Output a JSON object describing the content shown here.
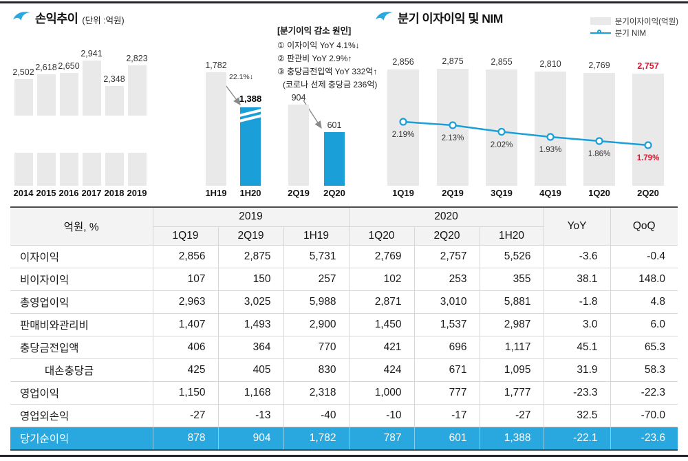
{
  "colors": {
    "blue": "#1B9FD9",
    "gray_bar": "#E9E9E9",
    "red": "#E8112D",
    "row_blue": "#29A7DF",
    "header_bg": "#F3F3F3",
    "rule": "#23232B"
  },
  "left_chart": {
    "title": "손익추이",
    "unit": "(단위 :억원)",
    "decline_label": "22.1%↓",
    "note_title": "[분기이익 감소 원인]",
    "note_lines": [
      "① 이자이익 YoY 4.1%↓",
      "② 판관비 YoY 2.9%↑",
      "③ 충당금전입액 YoY 332억↑",
      "(코로나 선제 충당금 236억)"
    ]
  },
  "right_chart": {
    "title": "분기 이자이익 및 NIM",
    "legend_bar": "분기이자이익(억원)",
    "legend_line": "분기 NIM"
  },
  "chart_data": [
    {
      "name": "profit_trend",
      "type": "bar",
      "title": "손익추이",
      "unit": "억원",
      "axis_break_on_years": true,
      "groups": [
        {
          "categories": [
            "2014",
            "2015",
            "2016",
            "2017",
            "2018",
            "2019"
          ],
          "values": [
            2502,
            2618,
            2650,
            2941,
            2348,
            2823
          ],
          "colors": [
            "gray",
            "gray",
            "gray",
            "gray",
            "gray",
            "gray"
          ]
        },
        {
          "categories": [
            "1H19",
            "1H20"
          ],
          "values": [
            1782,
            1388
          ],
          "colors": [
            "gray",
            "blue"
          ],
          "annotation": "22.1%↓"
        },
        {
          "categories": [
            "2Q19",
            "2Q20"
          ],
          "values": [
            904,
            601
          ],
          "colors": [
            "gray",
            "blue"
          ]
        }
      ]
    },
    {
      "name": "quarterly_interest_income_and_nim",
      "type": "bar+line",
      "title": "분기 이자이익 및 NIM",
      "categories": [
        "1Q19",
        "2Q19",
        "3Q19",
        "4Q19",
        "1Q20",
        "2Q20"
      ],
      "series": [
        {
          "name": "분기이자이익(억원)",
          "type": "bar",
          "values": [
            2856,
            2875,
            2855,
            2810,
            2769,
            2757
          ]
        },
        {
          "name": "분기 NIM",
          "type": "line",
          "unit": "%",
          "values": [
            2.19,
            2.13,
            2.02,
            1.93,
            1.86,
            1.79
          ]
        }
      ],
      "last_point_highlighted_red": true,
      "legend_position": "top-right"
    }
  ],
  "table": {
    "corner_label": "억원, %",
    "col_groups": [
      {
        "label": "2019",
        "cols": [
          "1Q19",
          "2Q19",
          "1H19"
        ]
      },
      {
        "label": "2020",
        "cols": [
          "1Q20",
          "2Q20",
          "1H20"
        ]
      }
    ],
    "extra_cols": [
      "YoY",
      "QoQ"
    ],
    "rows": [
      {
        "label": "이자이익",
        "indent": false,
        "highlight": false,
        "values": [
          "2,856",
          "2,875",
          "5,731",
          "2,769",
          "2,757",
          "5,526",
          "-3.6",
          "-0.4"
        ]
      },
      {
        "label": "비이자이익",
        "indent": false,
        "highlight": false,
        "values": [
          "107",
          "150",
          "257",
          "102",
          "253",
          "355",
          "38.1",
          "148.0"
        ]
      },
      {
        "label": "총영업이익",
        "indent": false,
        "highlight": false,
        "values": [
          "2,963",
          "3,025",
          "5,988",
          "2,871",
          "3,010",
          "5,881",
          "-1.8",
          "4.8"
        ]
      },
      {
        "label": "판매비와관리비",
        "indent": false,
        "highlight": false,
        "values": [
          "1,407",
          "1,493",
          "2,900",
          "1,450",
          "1,537",
          "2,987",
          "3.0",
          "6.0"
        ]
      },
      {
        "label": "충당금전입액",
        "indent": false,
        "highlight": false,
        "values": [
          "406",
          "364",
          "770",
          "421",
          "696",
          "1,117",
          "45.1",
          "65.3"
        ]
      },
      {
        "label": "대손충당금",
        "indent": true,
        "highlight": false,
        "values": [
          "425",
          "405",
          "830",
          "424",
          "671",
          "1,095",
          "31.9",
          "58.3"
        ]
      },
      {
        "label": "영업이익",
        "indent": false,
        "highlight": false,
        "values": [
          "1,150",
          "1,168",
          "2,318",
          "1,000",
          "777",
          "1,777",
          "-23.3",
          "-22.3"
        ]
      },
      {
        "label": "영업외손익",
        "indent": false,
        "highlight": false,
        "values": [
          "-27",
          "-13",
          "-40",
          "-10",
          "-17",
          "-27",
          "32.5",
          "-70.0"
        ]
      },
      {
        "label": "당기순이익",
        "indent": false,
        "highlight": true,
        "values": [
          "878",
          "904",
          "1,782",
          "787",
          "601",
          "1,388",
          "-22.1",
          "-23.6"
        ]
      }
    ]
  }
}
